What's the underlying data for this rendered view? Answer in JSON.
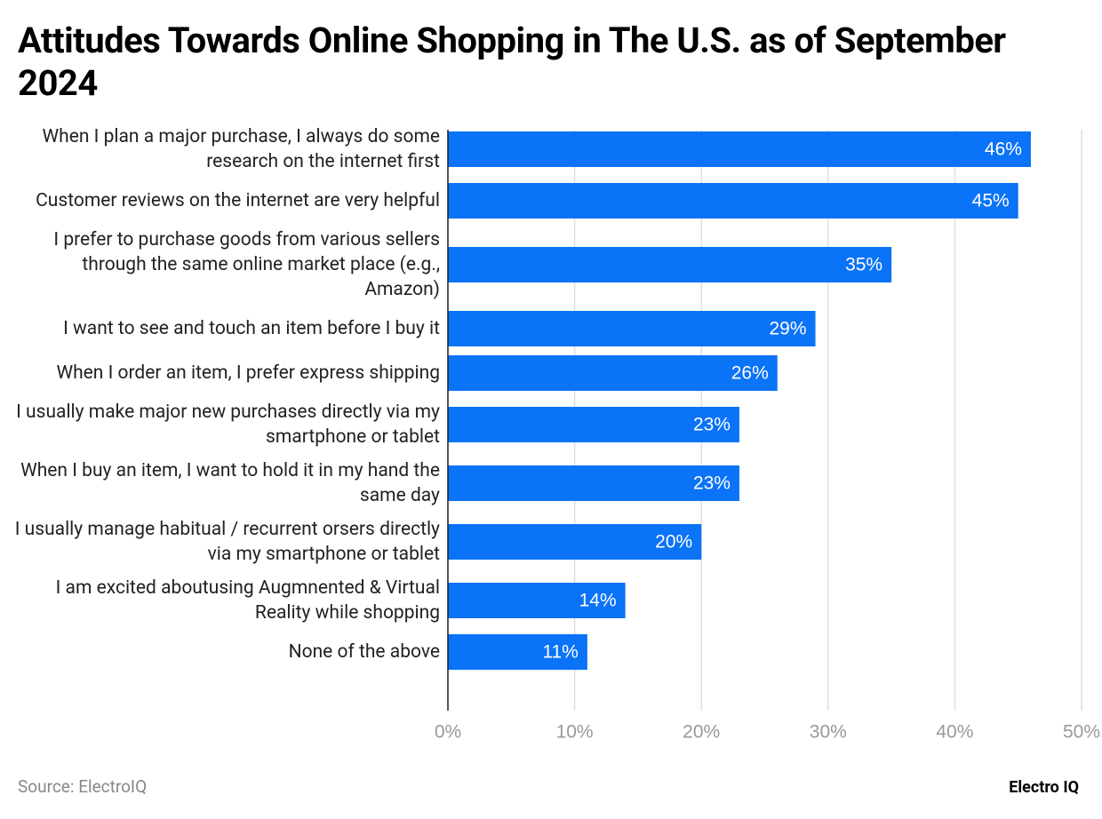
{
  "chart_data": {
    "type": "bar",
    "orientation": "horizontal",
    "title": "Attitudes Towards Online Shopping in The U.S. as of September 2024",
    "categories": [
      "When I plan a major purchase, I always do some research on the internet first",
      "Customer reviews on the internet are very helpful",
      "I prefer to purchase goods from various sellers through the same online market place (e.g., Amazon)",
      "I want to see and touch an item before I buy it",
      "When I order an item, I prefer express shipping",
      "I usually make major new purchases directly via my smartphone or tablet",
      "When I buy an item, I want to hold it in my hand the same day",
      "I usually manage habitual / recurrent orsers directly via my smartphone or tablet",
      "I am excited aboutusing Augmnented & Virtual Reality while shopping",
      "None of the above"
    ],
    "values": [
      46,
      45,
      35,
      29,
      26,
      23,
      23,
      20,
      14,
      11
    ],
    "value_labels": [
      "46%",
      "45%",
      "35%",
      "29%",
      "26%",
      "23%",
      "23%",
      "20%",
      "14%",
      "11%"
    ],
    "color": "#0a73f7",
    "xlim": [
      0,
      50
    ],
    "xticks": [
      {
        "value": 0,
        "label": "0%"
      },
      {
        "value": 10,
        "label": "10%"
      },
      {
        "value": 20,
        "label": "20%"
      },
      {
        "value": 30,
        "label": "30%"
      },
      {
        "value": 40,
        "label": "40%"
      },
      {
        "value": 50,
        "label": "50%"
      }
    ],
    "grid": true,
    "source": "Source: ElectroIQ",
    "brand": "Electro IQ"
  }
}
